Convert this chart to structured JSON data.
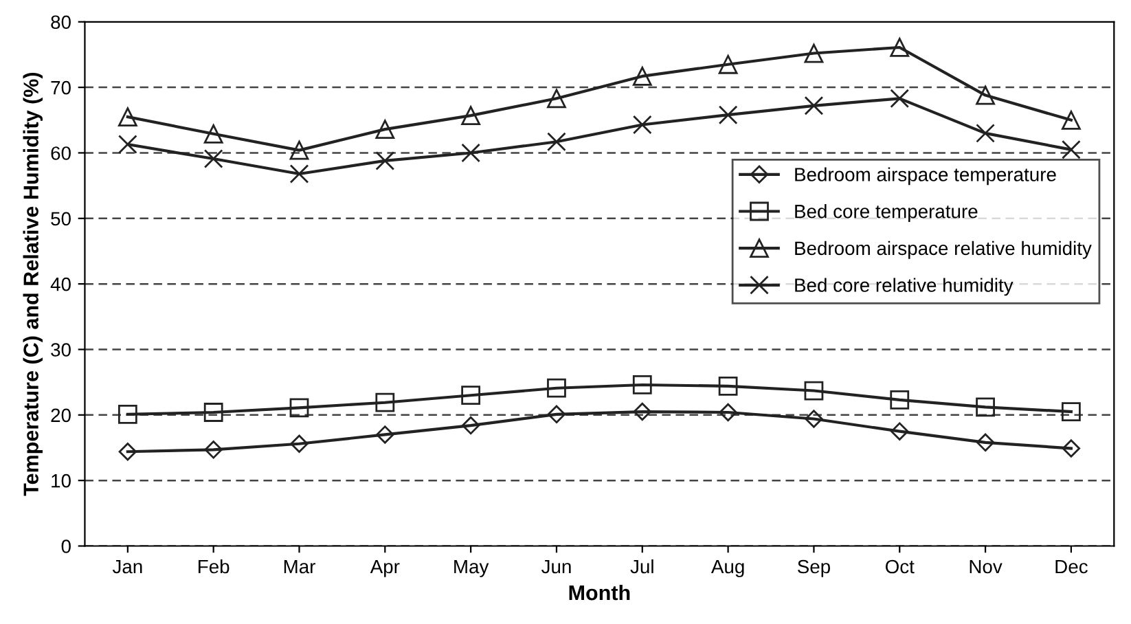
{
  "chart_data": {
    "type": "line",
    "xlabel": "Month",
    "ylabel": "Temperature (C) and Relative Humidity (%)",
    "categories": [
      "Jan",
      "Feb",
      "Mar",
      "Apr",
      "May",
      "Jun",
      "Jul",
      "Aug",
      "Sep",
      "Oct",
      "Nov",
      "Dec"
    ],
    "series": [
      {
        "name": "Bedroom airspace temperature",
        "color": "#222222",
        "marker": "diamond",
        "values": [
          14.4,
          14.7,
          15.6,
          17.0,
          18.4,
          20.1,
          20.5,
          20.4,
          19.4,
          17.5,
          15.8,
          14.9
        ]
      },
      {
        "name": "Bed core temperature",
        "color": "#222222",
        "marker": "square",
        "values": [
          20.1,
          20.4,
          21.1,
          21.9,
          23.0,
          24.1,
          24.6,
          24.4,
          23.7,
          22.3,
          21.2,
          20.5
        ]
      },
      {
        "name": "Bedroom airspace relative humidity",
        "color": "#222222",
        "marker": "triangle",
        "values": [
          65.5,
          62.9,
          60.4,
          63.6,
          65.7,
          68.3,
          71.7,
          73.5,
          75.2,
          76.1,
          68.8,
          65.0
        ]
      },
      {
        "name": "Bed core relative humidity",
        "color": "#222222",
        "marker": "cross",
        "values": [
          61.3,
          59.1,
          56.8,
          58.8,
          60.0,
          61.7,
          64.3,
          65.8,
          67.2,
          68.3,
          63.0,
          60.5
        ]
      }
    ],
    "ylim": [
      0,
      80
    ],
    "yticks": [
      0,
      10,
      20,
      30,
      40,
      50,
      60,
      70,
      80
    ],
    "grid": "y",
    "legend": "right",
    "line_style": "solid"
  }
}
